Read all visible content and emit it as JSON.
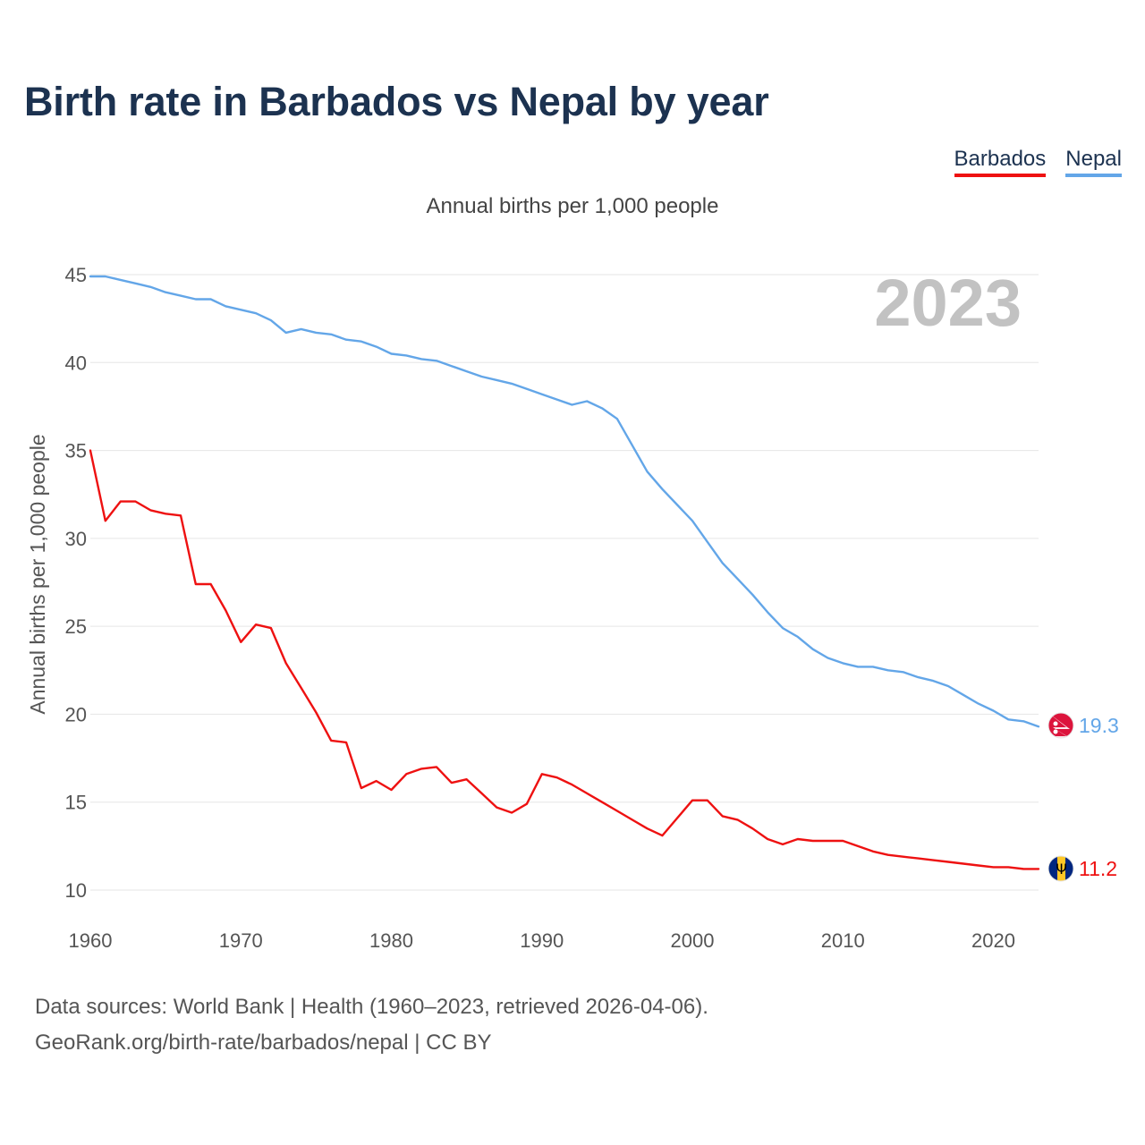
{
  "title": "Birth rate in Barbados vs Nepal by year",
  "legend": [
    {
      "label": "Barbados",
      "color": "#ee1111"
    },
    {
      "label": "Nepal",
      "color": "#63a6e8"
    }
  ],
  "subtitle": "Annual births per 1,000 people",
  "year_label": "2023",
  "footer": {
    "line1": "Data sources: World Bank | Health (1960–2023, retrieved 2026-04-06).",
    "line2": "GeoRank.org/birth-rate/barbados/nepal | CC BY"
  },
  "chart_data": {
    "type": "line",
    "title": "Birth rate in Barbados vs Nepal by year",
    "xlabel": "",
    "ylabel": "Annual births per 1,000 people",
    "xlim": [
      1960,
      2023
    ],
    "ylim": [
      10,
      45
    ],
    "x_ticks": [
      1960,
      1970,
      1980,
      1990,
      2000,
      2010,
      2020
    ],
    "y_ticks": [
      10,
      15,
      20,
      25,
      30,
      35,
      40,
      45
    ],
    "grid": true,
    "x": [
      1960,
      1961,
      1962,
      1963,
      1964,
      1965,
      1966,
      1967,
      1968,
      1969,
      1970,
      1971,
      1972,
      1973,
      1974,
      1975,
      1976,
      1977,
      1978,
      1979,
      1980,
      1981,
      1982,
      1983,
      1984,
      1985,
      1986,
      1987,
      1988,
      1989,
      1990,
      1991,
      1992,
      1993,
      1994,
      1995,
      1996,
      1997,
      1998,
      1999,
      2000,
      2001,
      2002,
      2003,
      2004,
      2005,
      2006,
      2007,
      2008,
      2009,
      2010,
      2011,
      2012,
      2013,
      2014,
      2015,
      2016,
      2017,
      2018,
      2019,
      2020,
      2021,
      2022,
      2023
    ],
    "series": [
      {
        "name": "Barbados",
        "color": "#ee1111",
        "end_label": "11.2",
        "values": [
          35.0,
          31.0,
          32.1,
          32.1,
          31.6,
          31.4,
          31.3,
          27.4,
          27.4,
          25.9,
          24.1,
          25.1,
          24.9,
          22.9,
          21.5,
          20.1,
          18.5,
          18.4,
          15.8,
          16.2,
          15.7,
          16.6,
          16.9,
          17.0,
          16.1,
          16.3,
          15.5,
          14.7,
          14.4,
          14.9,
          16.6,
          16.4,
          16.0,
          15.5,
          15.0,
          14.5,
          14.0,
          13.5,
          13.1,
          14.1,
          15.1,
          15.1,
          14.2,
          14.0,
          13.5,
          12.9,
          12.6,
          12.9,
          12.8,
          12.8,
          12.8,
          12.5,
          12.2,
          12.0,
          11.9,
          11.8,
          11.7,
          11.6,
          11.5,
          11.4,
          11.3,
          11.3,
          11.2,
          11.2
        ]
      },
      {
        "name": "Nepal",
        "color": "#63a6e8",
        "end_label": "19.3",
        "values": [
          44.9,
          44.9,
          44.7,
          44.5,
          44.3,
          44.0,
          43.8,
          43.6,
          43.6,
          43.2,
          43.0,
          42.8,
          42.4,
          41.7,
          41.9,
          41.7,
          41.6,
          41.3,
          41.2,
          40.9,
          40.5,
          40.4,
          40.2,
          40.1,
          39.8,
          39.5,
          39.2,
          39.0,
          38.8,
          38.5,
          38.2,
          37.9,
          37.6,
          37.8,
          37.4,
          36.8,
          35.3,
          33.8,
          32.8,
          31.9,
          31.0,
          29.8,
          28.6,
          27.7,
          26.8,
          25.8,
          24.9,
          24.4,
          23.7,
          23.2,
          22.9,
          22.7,
          22.7,
          22.5,
          22.4,
          22.1,
          21.9,
          21.6,
          21.1,
          20.6,
          20.2,
          19.7,
          19.6,
          19.3
        ]
      }
    ]
  }
}
